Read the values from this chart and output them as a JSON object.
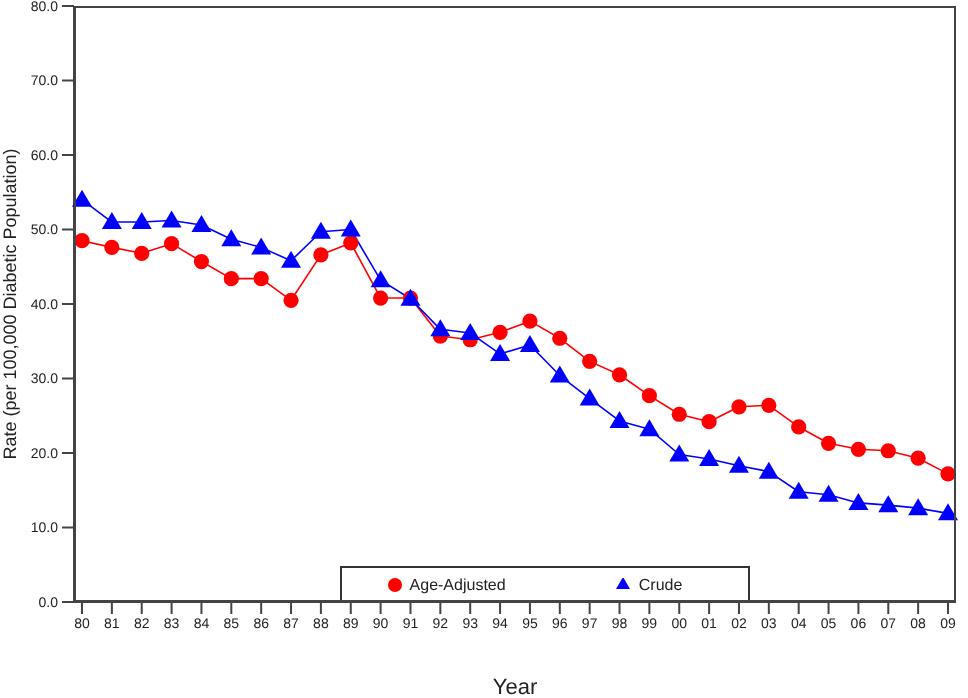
{
  "chart_data": {
    "type": "line",
    "xlabel": "Year",
    "ylabel": "Rate (per 100,000 Diabetic Population)",
    "categories": [
      "80",
      "81",
      "82",
      "83",
      "84",
      "85",
      "86",
      "87",
      "88",
      "89",
      "90",
      "91",
      "92",
      "93",
      "94",
      "95",
      "96",
      "97",
      "98",
      "99",
      "00",
      "01",
      "02",
      "03",
      "04",
      "05",
      "06",
      "07",
      "08",
      "09"
    ],
    "series": [
      {
        "name": "Crude",
        "color": "#0000ff",
        "marker": "triangle",
        "values": [
          54,
          51,
          51,
          51.2,
          50.6,
          48.7,
          47.6,
          45.8,
          49.7,
          50,
          43.2,
          40.7,
          36.6,
          36.1,
          33.3,
          34.5,
          30.4,
          27.3,
          24.3,
          23.2,
          19.8,
          19.2,
          18.3,
          17.5,
          14.8,
          14.4,
          13.3,
          13,
          12.6,
          11.9
        ]
      },
      {
        "name": "Age-Adjusted",
        "color": "#ff0000",
        "marker": "circle",
        "values": [
          48.5,
          47.6,
          46.8,
          48.1,
          45.7,
          43.4,
          43.4,
          40.5,
          46.6,
          48.2,
          40.8,
          40.8,
          35.7,
          35.2,
          36.2,
          37.7,
          35.4,
          32.3,
          30.5,
          27.7,
          25.2,
          24.2,
          26.2,
          26.4,
          23.5,
          21.3,
          20.5,
          20.3,
          19.3,
          17.2
        ]
      }
    ],
    "ylim": [
      0,
      80
    ],
    "yticks": [
      {
        "value": 0,
        "label": "0.0"
      },
      {
        "value": 10,
        "label": "10.0"
      },
      {
        "value": 20,
        "label": "20.0"
      },
      {
        "value": 30,
        "label": "30.0"
      },
      {
        "value": 40,
        "label": "40.0"
      },
      {
        "value": 50,
        "label": "50.0"
      },
      {
        "value": 60,
        "label": "60.0"
      },
      {
        "value": 70,
        "label": "70.0"
      },
      {
        "value": 80,
        "label": "80.0"
      }
    ],
    "grid": false,
    "legend": "bottom",
    "line_style": "solid"
  }
}
